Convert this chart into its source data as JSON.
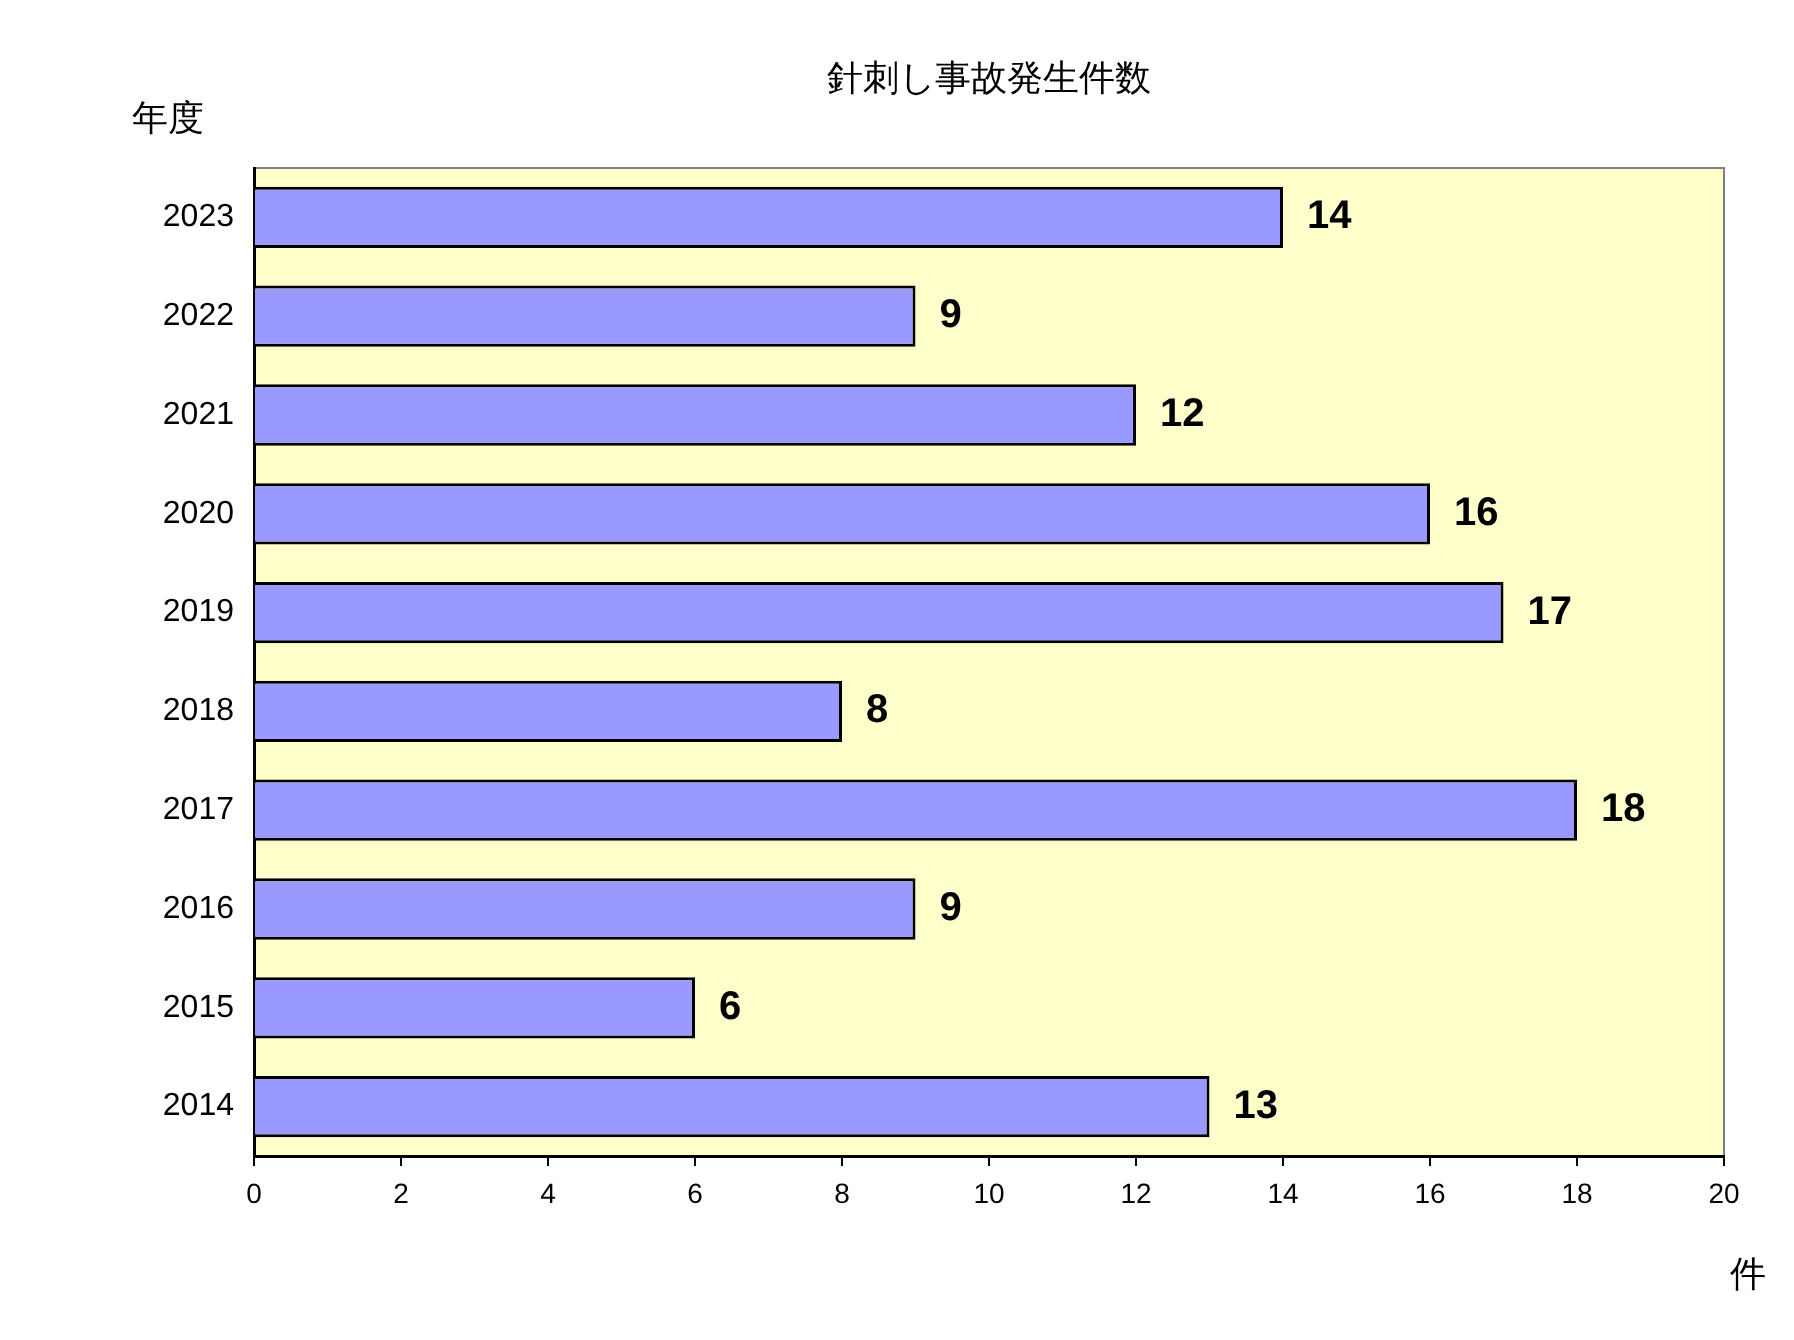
{
  "chart_data": {
    "type": "bar",
    "orientation": "horizontal",
    "title": "針刺し事故発生件数",
    "ylabel": "年度",
    "xlabel": "件",
    "categories": [
      "2023",
      "2022",
      "2021",
      "2020",
      "2019",
      "2018",
      "2017",
      "2016",
      "2015",
      "2014"
    ],
    "values": [
      14,
      9,
      12,
      16,
      17,
      8,
      18,
      9,
      6,
      13
    ],
    "color": "#9999ff",
    "xlim": [
      0,
      20
    ],
    "xticks": [
      0,
      2,
      4,
      6,
      8,
      10,
      12,
      14,
      16,
      18,
      20
    ],
    "grid": false,
    "legend": false,
    "data_labels": true
  }
}
